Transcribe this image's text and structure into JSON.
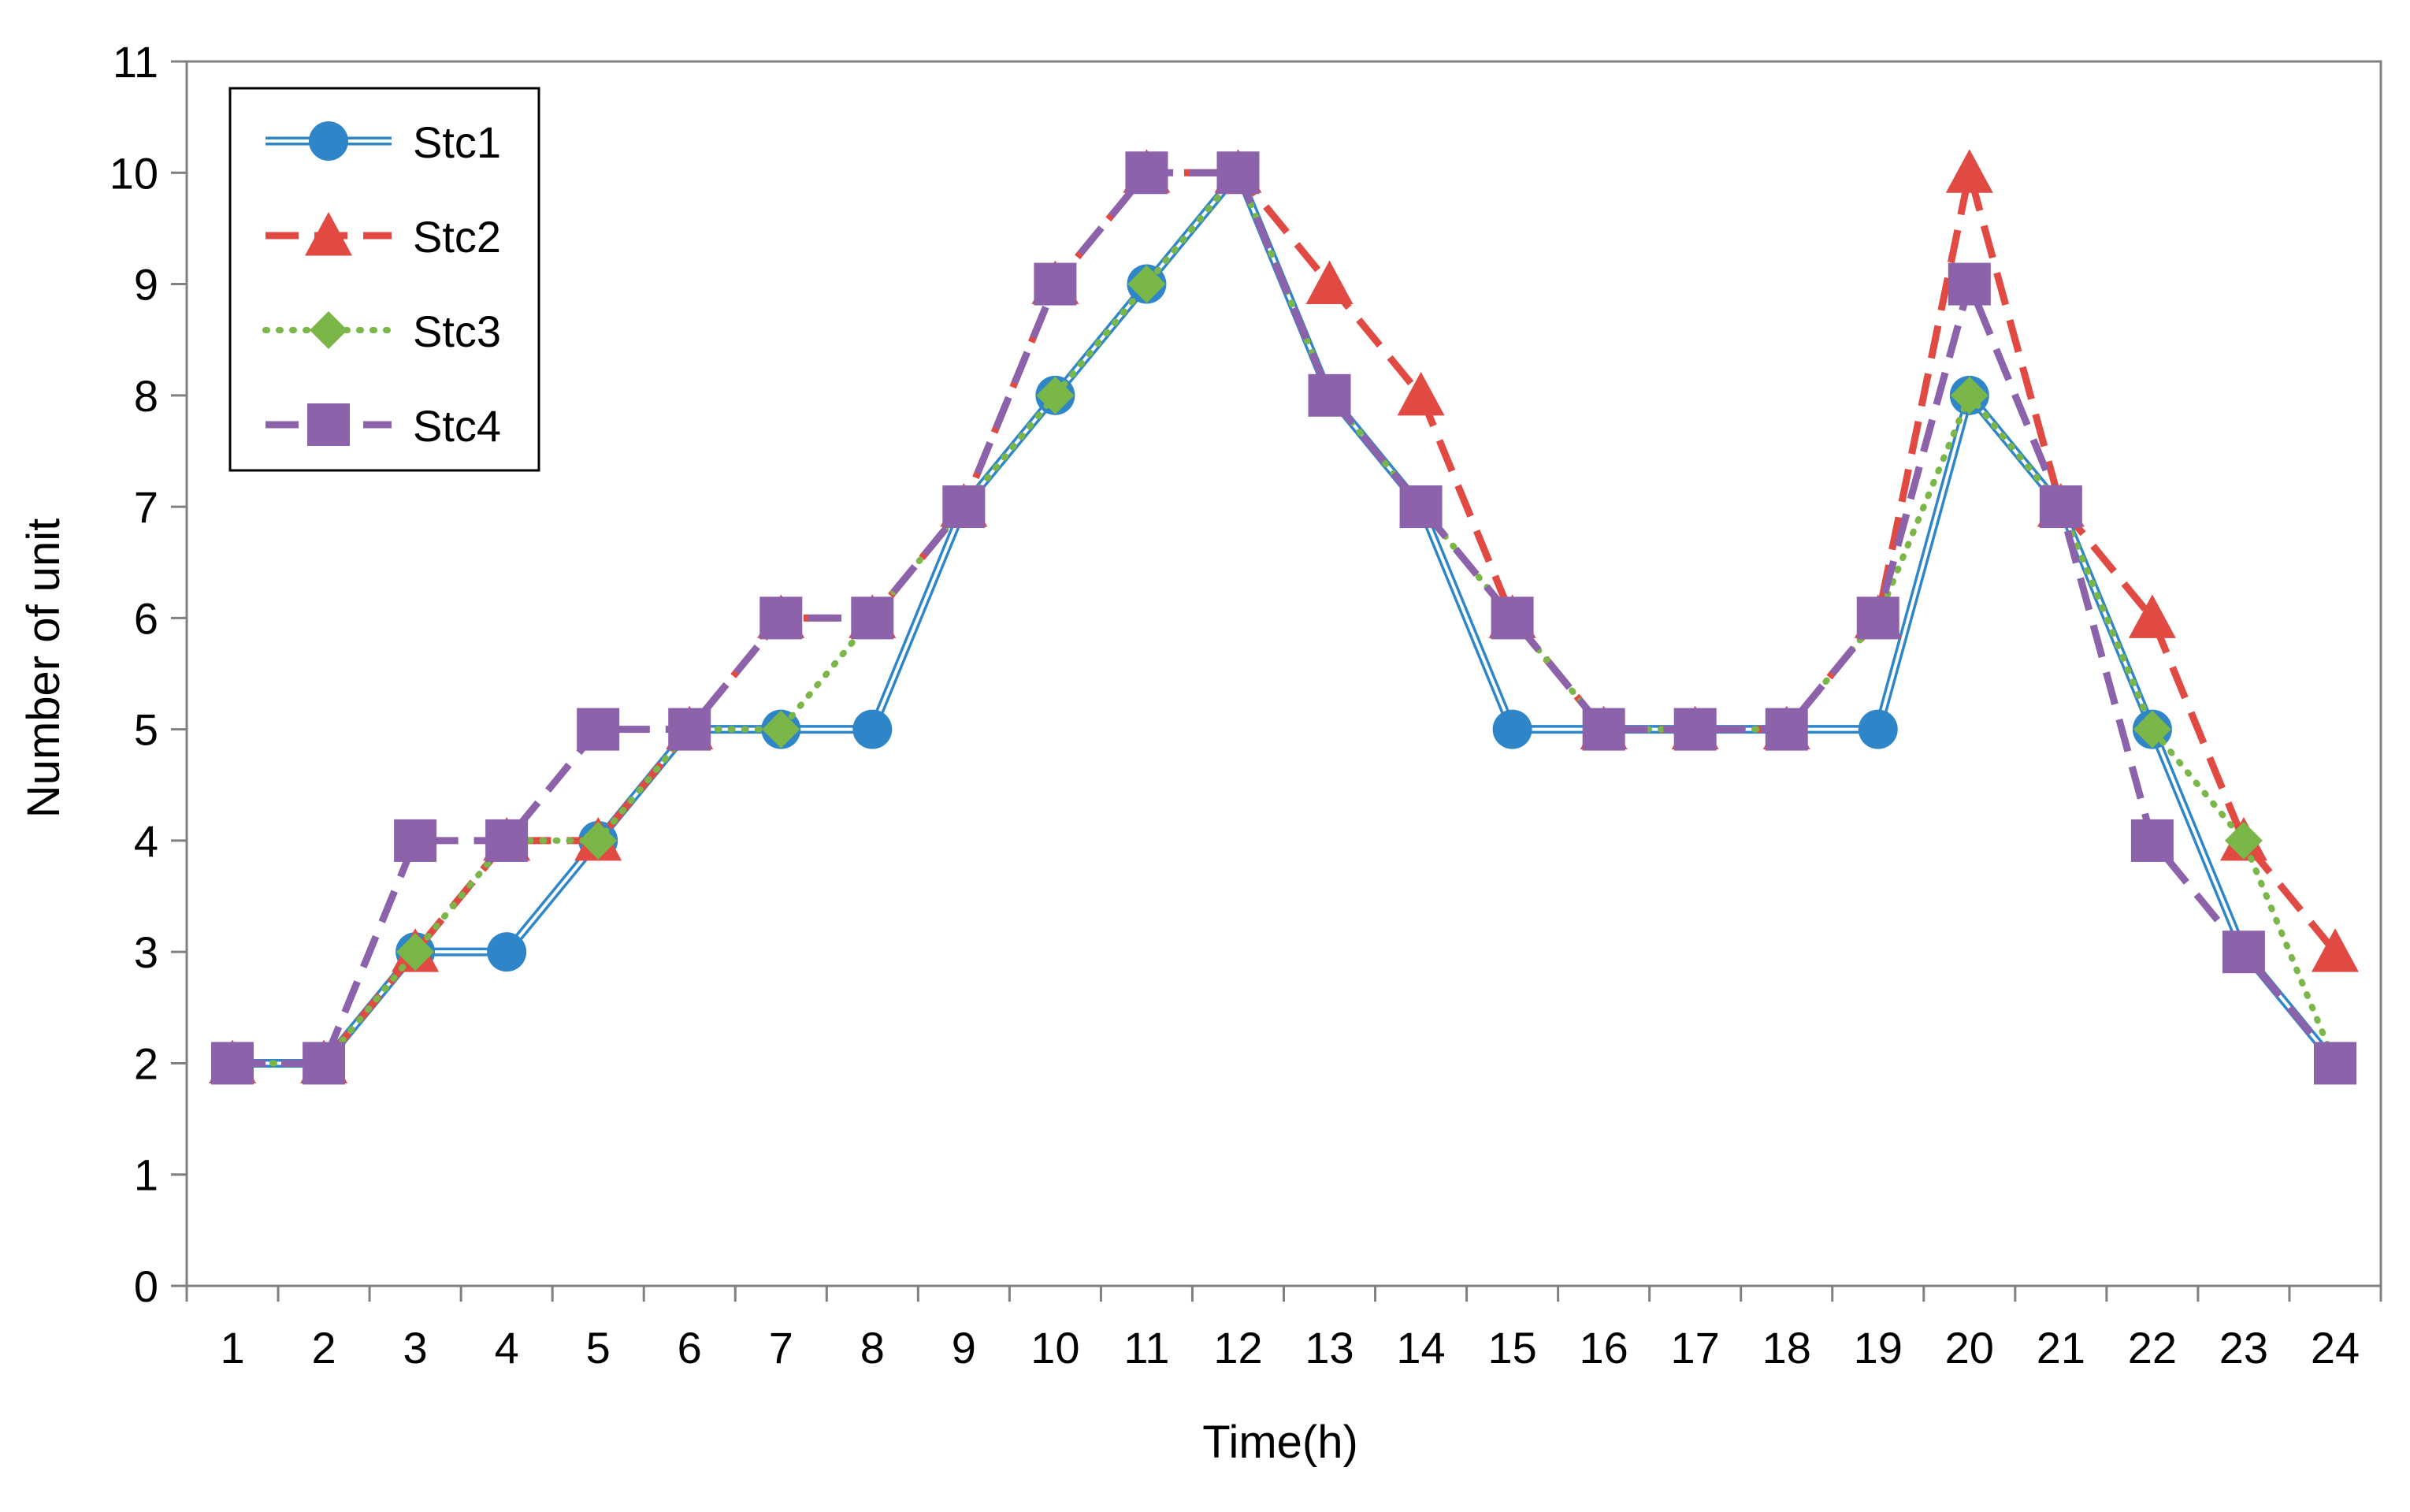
{
  "chart_data": {
    "type": "line",
    "title": "",
    "xlabel": "Time(h)",
    "ylabel": "Number of unit",
    "categories": [
      "1",
      "2",
      "3",
      "4",
      "5",
      "6",
      "7",
      "8",
      "9",
      "10",
      "11",
      "12",
      "13",
      "14",
      "15",
      "16",
      "17",
      "18",
      "19",
      "20",
      "21",
      "22",
      "23",
      "24"
    ],
    "ylim": [
      0,
      11
    ],
    "yticks": [
      "0",
      "1",
      "2",
      "3",
      "4",
      "5",
      "6",
      "7",
      "8",
      "9",
      "10",
      "11"
    ],
    "grid": false,
    "legend_position": "top-left",
    "series": [
      {
        "name": "Stc1",
        "values": [
          2,
          2,
          3,
          3,
          4,
          5,
          5,
          5,
          7,
          8,
          9,
          10,
          8,
          7,
          5,
          5,
          5,
          5,
          5,
          8,
          7,
          5,
          3,
          2
        ],
        "color": "#2e86c9",
        "line_style": "double",
        "marker": "circle"
      },
      {
        "name": "Stc2",
        "values": [
          2,
          2,
          3,
          4,
          4,
          5,
          6,
          6,
          7,
          9,
          10,
          10,
          9,
          8,
          6,
          5,
          5,
          5,
          6,
          10,
          7,
          6,
          4,
          3
        ],
        "color": "#e04a42",
        "line_style": "dashed",
        "marker": "triangle"
      },
      {
        "name": "Stc3",
        "values": [
          2,
          2,
          3,
          4,
          4,
          5,
          5,
          6,
          7,
          8,
          9,
          10,
          8,
          7,
          6,
          5,
          5,
          5,
          6,
          8,
          7,
          5,
          4,
          2
        ],
        "color": "#7ab648",
        "line_style": "dotted",
        "marker": "diamond"
      },
      {
        "name": "Stc4",
        "values": [
          2,
          2,
          4,
          4,
          5,
          5,
          6,
          6,
          7,
          9,
          10,
          10,
          8,
          7,
          6,
          5,
          5,
          5,
          6,
          9,
          7,
          4,
          3,
          2
        ],
        "color": "#8c62ab",
        "line_style": "dashed",
        "marker": "square"
      }
    ]
  }
}
